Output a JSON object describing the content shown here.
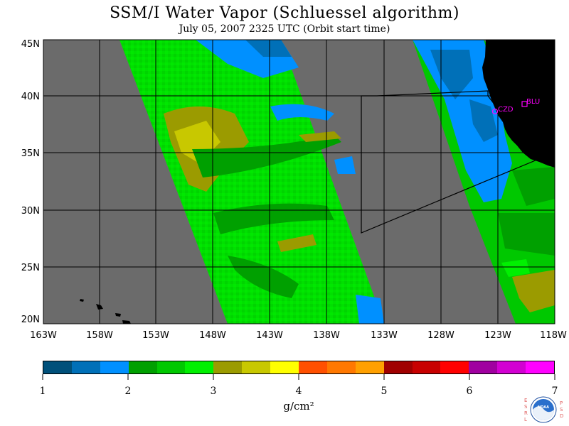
{
  "title": "SSM/I Water Vapor (Schluessel algorithm)",
  "subtitle": "July 05, 2007  2325 UTC  (Orbit start time)",
  "map": {
    "lon_labels": [
      "163W",
      "158W",
      "153W",
      "148W",
      "143W",
      "138W",
      "133W",
      "128W",
      "123W",
      "118W"
    ],
    "lat_labels": [
      "45N",
      "40N",
      "35N",
      "30N",
      "25N",
      "20N"
    ],
    "stations": [
      {
        "code": "CZD"
      },
      {
        "code": "BLU"
      }
    ],
    "colors": {
      "no_data": "#6b6b6b",
      "land": "#000000",
      "station": "#ff00ff"
    }
  },
  "colorbar": {
    "colors": [
      "#00507a",
      "#0070b8",
      "#0090ff",
      "#00a000",
      "#00c800",
      "#00f000",
      "#9b9b00",
      "#c8c800",
      "#ffff00",
      "#ff5000",
      "#ff7800",
      "#ffa000",
      "#a00000",
      "#c80000",
      "#ff0000",
      "#a000a0",
      "#d200d2",
      "#ff00ff"
    ],
    "tick_labels": [
      "1",
      "2",
      "3",
      "4",
      "5",
      "6",
      "7"
    ],
    "units": "g/cm²"
  },
  "logo": {
    "left_text": "ESRL",
    "right_text": "PSD",
    "center_text": "NOAA"
  }
}
